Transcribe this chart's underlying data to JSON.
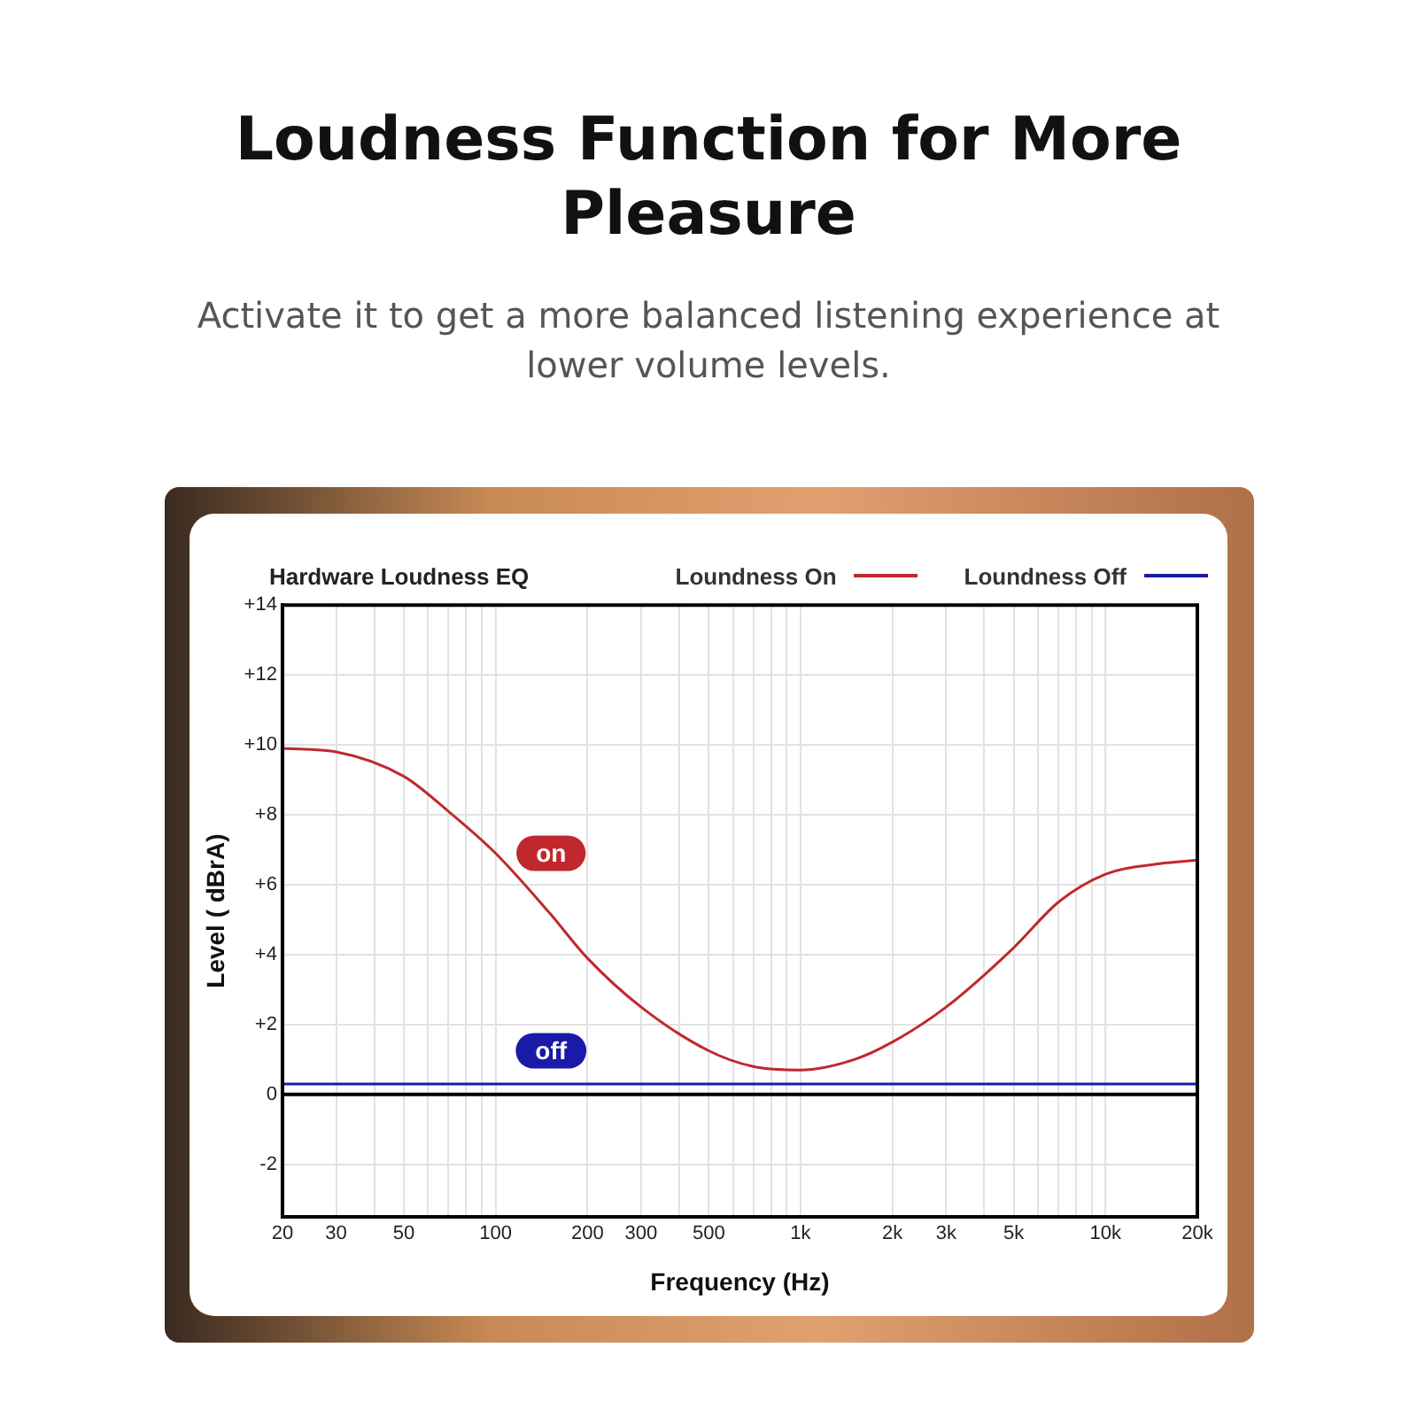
{
  "chart_data": {
    "type": "line",
    "title": "Loudness Function for More Pleasure",
    "subtitle": "Activate it to get a more balanced listening experience at lower volume levels.",
    "legend_title": "Hardware Loudness EQ",
    "xlabel": "Frequency (Hz)",
    "ylabel": "Level ( dBrA)",
    "log": "x",
    "grid": true,
    "legend": "top right",
    "marker": "none",
    "line_style": "solid",
    "xlim": [
      20,
      20000
    ],
    "xticks": [
      20,
      30,
      {
        "value": 40,
        "label": null
      },
      50,
      {
        "value": 60,
        "label": null
      },
      {
        "value": 70,
        "label": null
      },
      {
        "value": 80,
        "label": null
      },
      {
        "value": 90,
        "label": null
      },
      100,
      200,
      300,
      {
        "value": 400,
        "label": null
      },
      500,
      {
        "value": 600,
        "label": null
      },
      {
        "value": 700,
        "label": null
      },
      {
        "value": 800,
        "label": null
      },
      {
        "value": 900,
        "label": null
      },
      {
        "value": 1000,
        "label": "1k"
      },
      {
        "value": 2000,
        "label": "2k"
      },
      {
        "value": 3000,
        "label": "3k"
      },
      {
        "value": 4000,
        "label": null
      },
      {
        "value": 5000,
        "label": "5k"
      },
      {
        "value": 6000,
        "label": null
      },
      {
        "value": 7000,
        "label": null
      },
      {
        "value": 8000,
        "label": null
      },
      {
        "value": 9000,
        "label": null
      },
      {
        "value": 10000,
        "label": "10k"
      },
      {
        "value": 20000,
        "label": "20k"
      }
    ],
    "ylim": [
      -3.5,
      14
    ],
    "yticks": [
      -2,
      0,
      {
        "value": 2,
        "label": "+2"
      },
      {
        "value": 4,
        "label": "+4"
      },
      {
        "value": 6,
        "label": "+6"
      },
      {
        "value": 8,
        "label": "+8"
      },
      {
        "value": 10,
        "label": "+10"
      },
      {
        "value": 12,
        "label": "+12"
      },
      {
        "value": 14,
        "label": "+14"
      }
    ],
    "x": [
      20,
      30,
      50,
      70,
      100,
      150,
      200,
      300,
      500,
      700,
      1000,
      1500,
      2000,
      3000,
      5000,
      7000,
      10000,
      15000,
      20000
    ],
    "series": [
      {
        "name": "Loundness On",
        "color": "#c0282d",
        "values": [
          9.9,
          9.8,
          9.1,
          8.1,
          6.9,
          5.2,
          3.9,
          2.5,
          1.25,
          0.8,
          0.7,
          1.0,
          1.5,
          2.5,
          4.2,
          5.5,
          6.3,
          6.6,
          6.7
        ]
      },
      {
        "name": "Loundness Off",
        "color": "#1a1aa8",
        "values": [
          0.3,
          0.3,
          0.3,
          0.3,
          0.3,
          0.3,
          0.3,
          0.3,
          0.3,
          0.3,
          0.3,
          0.3,
          0.3,
          0.3,
          0.3,
          0.3,
          0.3,
          0.3,
          0.3
        ]
      }
    ],
    "ref_lines": [
      {
        "axis": "y",
        "value": 0,
        "color": "#000000"
      }
    ],
    "annotations": [
      {
        "text": "on",
        "x": 152,
        "y": 6.9
      },
      {
        "text": "off",
        "x": 152,
        "y": 1.25
      }
    ]
  }
}
